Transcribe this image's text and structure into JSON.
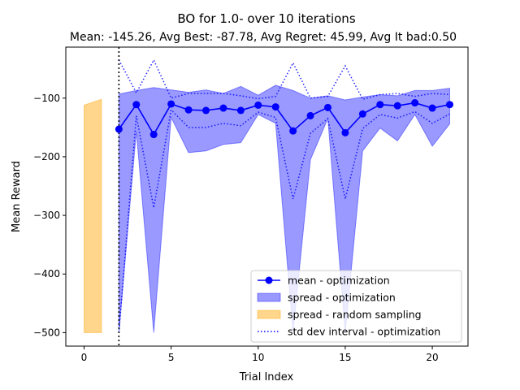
{
  "chart_data": {
    "type": "line",
    "title": "BO for 1.0- over 10 iterations",
    "subtitle": "Mean: -145.26, Avg Best: -87.78, Avg Regret: 45.99, Avg It bad:0.50",
    "xlabel": "Trial Index",
    "ylabel": "Mean Reward",
    "xlim": [
      -1.05,
      22.05
    ],
    "ylim": [
      -523,
      -13
    ],
    "xticks": [
      0,
      5,
      10,
      15,
      20
    ],
    "yticks": [
      -500,
      -400,
      -300,
      -200,
      -100
    ],
    "grid": false,
    "legend_position": "lower-right",
    "vline_x": 2,
    "series": [
      {
        "name": "mean - optimization",
        "kind": "line-markers",
        "color": "#0000ff",
        "x": [
          2,
          3,
          4,
          5,
          6,
          7,
          8,
          9,
          10,
          11,
          12,
          13,
          14,
          15,
          16,
          17,
          18,
          19,
          20,
          21
        ],
        "values": [
          -153,
          -111,
          -162,
          -110,
          -120,
          -121,
          -117,
          -121,
          -112,
          -115,
          -156,
          -130,
          -116,
          -159,
          -127,
          -111,
          -113,
          -108,
          -117,
          -111
        ]
      },
      {
        "name": "spread - optimization",
        "kind": "band",
        "color": "#0000ff",
        "opacity": 0.4,
        "x": [
          2,
          3,
          4,
          5,
          6,
          7,
          8,
          9,
          10,
          11,
          12,
          13,
          14,
          15,
          16,
          17,
          18,
          19,
          20,
          21
        ],
        "upper": [
          -93,
          -87,
          -82,
          -86,
          -90,
          -86,
          -92,
          -80,
          -95,
          -78,
          -87,
          -100,
          -96,
          -103,
          -98,
          -94,
          -96,
          -87,
          -87,
          -83
        ],
        "lower": [
          -500,
          -157,
          -500,
          -133,
          -193,
          -190,
          -179,
          -176,
          -128,
          -143,
          -500,
          -205,
          -135,
          -500,
          -190,
          -151,
          -173,
          -128,
          -182,
          -144
        ]
      },
      {
        "name": "spread - random sampling",
        "kind": "band",
        "color": "#ffa500",
        "opacity": 0.45,
        "x": [
          0,
          1
        ],
        "upper": [
          -112,
          -102
        ],
        "lower": [
          -500,
          -500
        ]
      },
      {
        "name": "std dev interval - optimization",
        "kind": "dotted-bounds",
        "color": "#0000ff",
        "x": [
          2,
          3,
          4,
          5,
          6,
          7,
          8,
          9,
          10,
          11,
          12,
          13,
          14,
          15,
          16,
          17,
          18,
          19,
          20,
          21
        ],
        "upper": [
          -35,
          -91,
          -35,
          -100,
          -92,
          -92,
          -92,
          -96,
          -101,
          -97,
          -40,
          -100,
          -97,
          -45,
          -102,
          -94,
          -92,
          -97,
          -92,
          -94
        ],
        "lower": [
          -500,
          -130,
          -287,
          -120,
          -150,
          -150,
          -143,
          -147,
          -124,
          -133,
          -272,
          -160,
          -135,
          -272,
          -152,
          -128,
          -134,
          -123,
          -143,
          -127
        ]
      }
    ]
  }
}
